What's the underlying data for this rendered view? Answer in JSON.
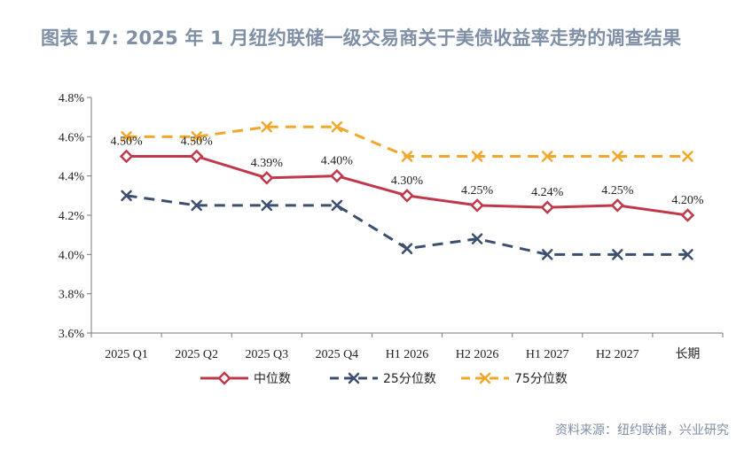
{
  "title": "图表 17: 2025 年 1 月纽约联储一级交易商关于美债收益率走势的调查结果",
  "source": "资料来源：纽约联储，兴业研究",
  "colors": {
    "title": "#7f8fa6",
    "median": "#c0394b",
    "p25": "#3d4f6f",
    "p75": "#f2a72b"
  },
  "chart_data": {
    "type": "line",
    "title": "图表 17: 2025 年 1 月纽约联储一级交易商关于美债收益率走势的调查结果",
    "categories": [
      "2025 Q1",
      "2025 Q2",
      "2025 Q3",
      "2025 Q4",
      "H1 2026",
      "H2 2026",
      "H1 2027",
      "H2 2027",
      "长期"
    ],
    "ylim": [
      3.6,
      4.8
    ],
    "yticks": [
      3.6,
      3.8,
      4.0,
      4.2,
      4.4,
      4.6,
      4.8
    ],
    "ytick_labels": [
      "3.6%",
      "3.8%",
      "4.0%",
      "4.2%",
      "4.4%",
      "4.6%",
      "4.8%"
    ],
    "grid": false,
    "legend_position": "bottom",
    "series": [
      {
        "name": "中位数",
        "values": [
          4.5,
          4.5,
          4.39,
          4.4,
          4.3,
          4.25,
          4.24,
          4.25,
          4.2
        ],
        "labels": [
          "4.50%",
          "4.50%",
          "4.39%",
          "4.40%",
          "4.30%",
          "4.25%",
          "4.24%",
          "4.25%",
          "4.20%"
        ],
        "color": "#c0394b",
        "style": "solid",
        "marker": "diamond"
      },
      {
        "name": "25分位数",
        "values": [
          4.3,
          4.25,
          4.25,
          4.25,
          4.03,
          4.08,
          4.0,
          4.0,
          4.0
        ],
        "color": "#3d4f6f",
        "style": "dashed",
        "marker": "cross"
      },
      {
        "name": "75分位数",
        "values": [
          4.6,
          4.6,
          4.65,
          4.65,
          4.5,
          4.5,
          4.5,
          4.5,
          4.5
        ],
        "color": "#f2a72b",
        "style": "dashed",
        "marker": "cross"
      }
    ]
  }
}
